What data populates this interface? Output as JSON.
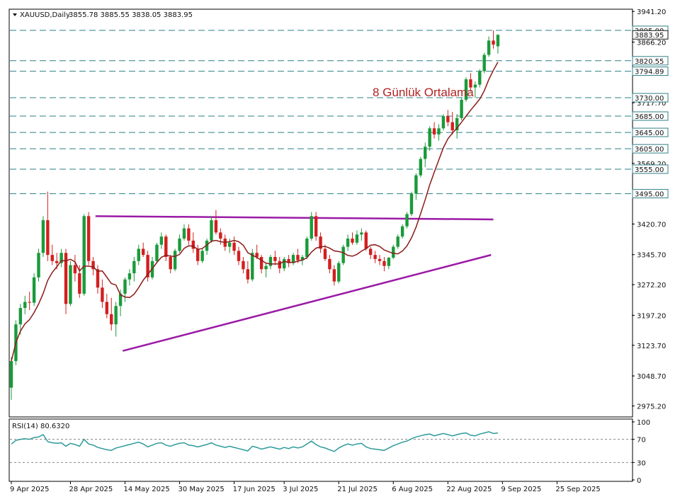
{
  "header": {
    "symbol": "XAUUSD,Daily",
    "ohlc": "3855.78 3885.55 3838.05 3883.95"
  },
  "colors": {
    "candle_up": "#1a9a3a",
    "candle_down": "#d21f1f",
    "ma_line": "#8b1a1a",
    "support_line": "#9b1aa6",
    "level_line": "#2f7f86",
    "rsi_line": "#2e9a9a",
    "annotation": "#b22222"
  },
  "annotation": {
    "text": "8 Günlük Ortalama"
  },
  "chart_data": {
    "type": "candlestick",
    "price_ticks": [
      "3941.20",
      "3866.20",
      "3717.70",
      "3569.20",
      "3420.70",
      "3345.70",
      "3272.20",
      "3197.20",
      "3123.70",
      "3048.70",
      "2975.20"
    ],
    "ylim": [
      2950,
      3945
    ],
    "levels": [
      {
        "label": "3895.00",
        "value": 3895
      },
      {
        "label": "3820.55",
        "value": 3820.55
      },
      {
        "label": "3794.89",
        "value": 3794.89
      },
      {
        "label": "3730.00",
        "value": 3730
      },
      {
        "label": "3685.00",
        "value": 3685
      },
      {
        "label": "3645.00",
        "value": 3645
      },
      {
        "label": "3605.00",
        "value": 3605
      },
      {
        "label": "3555.00",
        "value": 3555
      },
      {
        "label": "3495.00",
        "value": 3495
      }
    ],
    "current_price": {
      "label": "3883.95",
      "value": 3883.95
    },
    "x_labels": [
      {
        "text": "9 Apr 2025",
        "bar": 0
      },
      {
        "text": "28 Apr 2025",
        "bar": 13
      },
      {
        "text": "14 May 2025",
        "bar": 25
      },
      {
        "text": "30 May 2025",
        "bar": 37
      },
      {
        "text": "17 Jun 2025",
        "bar": 49
      },
      {
        "text": "3 Jul 2025",
        "bar": 60
      },
      {
        "text": "21 Jul 2025",
        "bar": 72
      },
      {
        "text": "6 Aug 2025",
        "bar": 84
      },
      {
        "text": "22 Aug 2025",
        "bar": 96
      },
      {
        "text": "9 Sep 2025",
        "bar": 108
      },
      {
        "text": "25 Sep 2025",
        "bar": 120
      }
    ],
    "candles": [
      [
        3020,
        3095,
        2990,
        3085
      ],
      [
        3085,
        3185,
        3075,
        3175
      ],
      [
        3175,
        3225,
        3150,
        3215
      ],
      [
        3215,
        3245,
        3200,
        3230
      ],
      [
        3230,
        3255,
        3210,
        3228
      ],
      [
        3228,
        3300,
        3220,
        3290
      ],
      [
        3290,
        3360,
        3280,
        3350
      ],
      [
        3350,
        3440,
        3340,
        3430
      ],
      [
        3430,
        3500,
        3330,
        3345
      ],
      [
        3345,
        3370,
        3320,
        3330
      ],
      [
        3330,
        3350,
        3310,
        3325
      ],
      [
        3325,
        3360,
        3315,
        3350
      ],
      [
        3350,
        3360,
        3200,
        3225
      ],
      [
        3225,
        3330,
        3220,
        3320
      ],
      [
        3320,
        3345,
        3280,
        3300
      ],
      [
        3300,
        3320,
        3240,
        3250
      ],
      [
        3250,
        3445,
        3245,
        3440
      ],
      [
        3440,
        3450,
        3320,
        3330
      ],
      [
        3330,
        3340,
        3295,
        3310
      ],
      [
        3310,
        3320,
        3250,
        3265
      ],
      [
        3265,
        3285,
        3215,
        3230
      ],
      [
        3230,
        3250,
        3190,
        3200
      ],
      [
        3200,
        3240,
        3160,
        3175
      ],
      [
        3175,
        3230,
        3145,
        3220
      ],
      [
        3220,
        3260,
        3195,
        3250
      ],
      [
        3250,
        3290,
        3230,
        3285
      ],
      [
        3285,
        3310,
        3270,
        3300
      ],
      [
        3300,
        3340,
        3280,
        3330
      ],
      [
        3330,
        3370,
        3320,
        3360
      ],
      [
        3360,
        3375,
        3340,
        3345
      ],
      [
        3345,
        3355,
        3280,
        3290
      ],
      [
        3290,
        3340,
        3285,
        3330
      ],
      [
        3330,
        3375,
        3325,
        3370
      ],
      [
        3370,
        3400,
        3360,
        3390
      ],
      [
        3390,
        3395,
        3330,
        3340
      ],
      [
        3340,
        3345,
        3300,
        3310
      ],
      [
        3310,
        3360,
        3305,
        3355
      ],
      [
        3355,
        3395,
        3350,
        3385
      ],
      [
        3385,
        3420,
        3380,
        3410
      ],
      [
        3410,
        3420,
        3370,
        3380
      ],
      [
        3380,
        3400,
        3350,
        3360
      ],
      [
        3360,
        3370,
        3320,
        3330
      ],
      [
        3330,
        3360,
        3325,
        3355
      ],
      [
        3355,
        3385,
        3345,
        3380
      ],
      [
        3380,
        3440,
        3375,
        3430
      ],
      [
        3430,
        3455,
        3395,
        3400
      ],
      [
        3400,
        3410,
        3370,
        3385
      ],
      [
        3385,
        3395,
        3355,
        3365
      ],
      [
        3365,
        3385,
        3350,
        3375
      ],
      [
        3375,
        3390,
        3345,
        3355
      ],
      [
        3355,
        3365,
        3320,
        3330
      ],
      [
        3330,
        3340,
        3300,
        3310
      ],
      [
        3310,
        3330,
        3275,
        3285
      ],
      [
        3285,
        3360,
        3280,
        3350
      ],
      [
        3350,
        3370,
        3335,
        3340
      ],
      [
        3340,
        3345,
        3300,
        3310
      ],
      [
        3310,
        3325,
        3290,
        3318
      ],
      [
        3318,
        3345,
        3310,
        3340
      ],
      [
        3340,
        3355,
        3320,
        3330
      ],
      [
        3330,
        3340,
        3300,
        3312
      ],
      [
        3312,
        3340,
        3305,
        3335
      ],
      [
        3335,
        3345,
        3315,
        3325
      ],
      [
        3325,
        3350,
        3320,
        3345
      ],
      [
        3345,
        3360,
        3325,
        3332
      ],
      [
        3332,
        3345,
        3320,
        3340
      ],
      [
        3340,
        3390,
        3335,
        3385
      ],
      [
        3385,
        3450,
        3380,
        3440
      ],
      [
        3440,
        3450,
        3380,
        3390
      ],
      [
        3390,
        3400,
        3350,
        3360
      ],
      [
        3360,
        3370,
        3330,
        3335
      ],
      [
        3335,
        3345,
        3300,
        3310
      ],
      [
        3310,
        3320,
        3270,
        3280
      ],
      [
        3280,
        3330,
        3275,
        3325
      ],
      [
        3325,
        3370,
        3320,
        3365
      ],
      [
        3365,
        3395,
        3355,
        3385
      ],
      [
        3385,
        3400,
        3370,
        3375
      ],
      [
        3375,
        3405,
        3370,
        3395
      ],
      [
        3395,
        3410,
        3380,
        3400
      ],
      [
        3400,
        3405,
        3355,
        3360
      ],
      [
        3360,
        3365,
        3335,
        3345
      ],
      [
        3345,
        3355,
        3325,
        3335
      ],
      [
        3335,
        3345,
        3320,
        3330
      ],
      [
        3330,
        3340,
        3305,
        3318
      ],
      [
        3318,
        3340,
        3310,
        3338
      ],
      [
        3338,
        3370,
        3335,
        3365
      ],
      [
        3365,
        3395,
        3360,
        3390
      ],
      [
        3390,
        3420,
        3385,
        3415
      ],
      [
        3415,
        3450,
        3410,
        3445
      ],
      [
        3445,
        3500,
        3440,
        3495
      ],
      [
        3495,
        3545,
        3480,
        3540
      ],
      [
        3540,
        3585,
        3535,
        3580
      ],
      [
        3580,
        3620,
        3560,
        3610
      ],
      [
        3610,
        3660,
        3600,
        3655
      ],
      [
        3655,
        3670,
        3630,
        3640
      ],
      [
        3640,
        3665,
        3625,
        3655
      ],
      [
        3655,
        3690,
        3650,
        3685
      ],
      [
        3685,
        3700,
        3660,
        3670
      ],
      [
        3670,
        3695,
        3640,
        3650
      ],
      [
        3650,
        3690,
        3630,
        3680
      ],
      [
        3680,
        3730,
        3675,
        3725
      ],
      [
        3725,
        3780,
        3720,
        3775
      ],
      [
        3775,
        3790,
        3745,
        3755
      ],
      [
        3755,
        3770,
        3730,
        3762
      ],
      [
        3762,
        3800,
        3755,
        3795
      ],
      [
        3795,
        3840,
        3790,
        3835
      ],
      [
        3835,
        3880,
        3830,
        3870
      ],
      [
        3870,
        3895,
        3850,
        3860
      ],
      [
        3855.78,
        3885.55,
        3838.05,
        3883.95
      ]
    ],
    "rsi": {
      "label": "RSI(14) 80.6320",
      "ticks": [
        "100",
        "70",
        "30",
        "0"
      ],
      "levels": [
        70,
        30
      ],
      "values": [
        62,
        68,
        70,
        71,
        70,
        73,
        74,
        78,
        66,
        64,
        63,
        64,
        58,
        63,
        61,
        58,
        70,
        62,
        60,
        56,
        54,
        52,
        51,
        55,
        57,
        59,
        61,
        63,
        65,
        62,
        57,
        60,
        63,
        64,
        60,
        58,
        61,
        63,
        64,
        60,
        59,
        57,
        59,
        61,
        64,
        60,
        58,
        56,
        58,
        56,
        54,
        52,
        50,
        58,
        56,
        53,
        55,
        57,
        55,
        53,
        56,
        54,
        57,
        55,
        57,
        62,
        67,
        61,
        57,
        55,
        52,
        49,
        55,
        59,
        62,
        60,
        62,
        63,
        57,
        54,
        53,
        52,
        51,
        55,
        59,
        62,
        65,
        67,
        71,
        74,
        76,
        78,
        79,
        76,
        78,
        80,
        78,
        76,
        78,
        80,
        81,
        77,
        76,
        79,
        81,
        83,
        80,
        81
      ]
    },
    "ma8": {
      "label": "8 Günlük Ortalama"
    }
  }
}
